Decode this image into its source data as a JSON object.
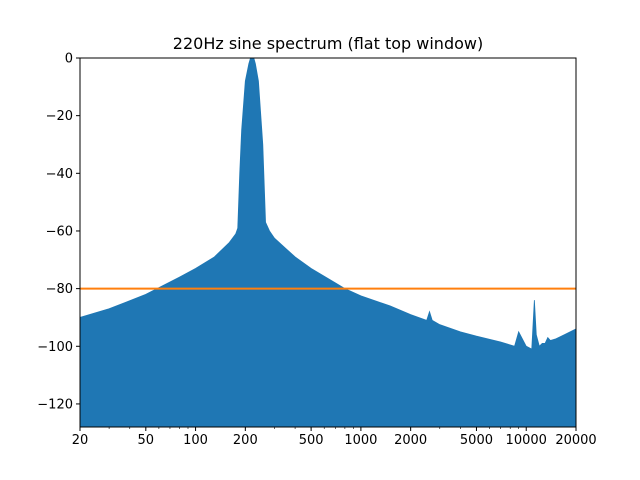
{
  "chart_data": {
    "type": "area",
    "title": "220Hz sine spectrum (flat top window)",
    "xlabel": "",
    "ylabel": "",
    "xscale": "log",
    "xlim": [
      20,
      20000
    ],
    "ylim": [
      -128,
      0
    ],
    "grid": false,
    "x_ticks": [
      20,
      50,
      100,
      200,
      500,
      1000,
      2000,
      5000,
      10000,
      20000
    ],
    "x_tick_labels": [
      "20",
      "50",
      "100",
      "200",
      "500",
      "1000",
      "2000",
      "5000",
      "10000",
      "20000"
    ],
    "y_ticks": [
      0,
      -20,
      -40,
      -60,
      -80,
      -100,
      -120
    ],
    "y_tick_labels": [
      "0",
      "−20",
      "−40",
      "−60",
      "−80",
      "−100",
      "−120"
    ],
    "series": [
      {
        "kind": "filled-spectrum",
        "color": "#1f77b4",
        "x": [
          20,
          30,
          50,
          80,
          100,
          130,
          160,
          175,
          180,
          185,
          190,
          200,
          210,
          215,
          220,
          225,
          230,
          240,
          255,
          265,
          280,
          300,
          350,
          400,
          500,
          700,
          800,
          1000,
          1500,
          2000,
          2500,
          2600,
          2700,
          3000,
          4000,
          5000,
          7000,
          8500,
          9000,
          10000,
          10800,
          11200,
          11500,
          12000,
          12500,
          13000,
          13500,
          14000,
          15000,
          17000,
          20000
        ],
        "values": [
          -90,
          -87,
          -82,
          -76,
          -73,
          -69,
          -64,
          -61,
          -59,
          -40,
          -25,
          -8,
          -2,
          0,
          0,
          0,
          -2,
          -8,
          -30,
          -57,
          -60,
          -62.5,
          -66,
          -69,
          -73,
          -78,
          -80,
          -82.5,
          -86,
          -89,
          -91,
          -88,
          -91,
          -92.5,
          -95,
          -96.5,
          -98.5,
          -100,
          -95,
          -100,
          -101,
          -84,
          -96,
          -100,
          -99,
          -99,
          -97,
          -98,
          -97.5,
          -96,
          -94
        ]
      },
      {
        "kind": "threshold-line",
        "color": "#ff7f0e",
        "x": [
          20,
          20000
        ],
        "values": [
          -80,
          -80
        ]
      }
    ]
  }
}
